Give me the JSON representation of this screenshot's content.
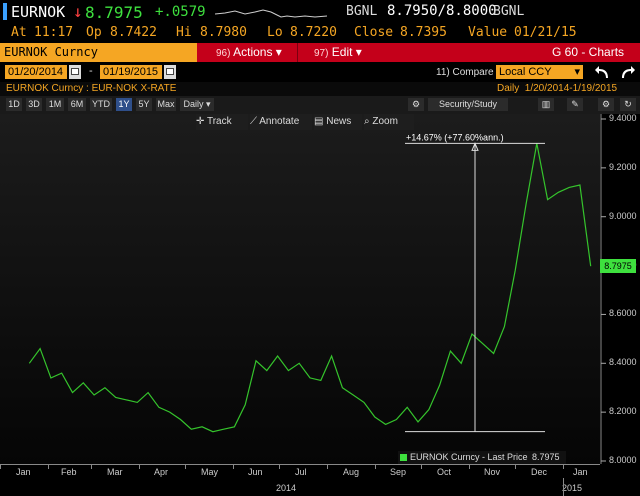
{
  "quote": {
    "ticker": "EURNOK",
    "arrow": "↓",
    "last": "8.7975",
    "change": "+.0579",
    "source": "BGNL",
    "bid_ask": "8.7950/8.8000",
    "source2": "BGNL",
    "at_label": "At",
    "time": "11:17",
    "op_label": "Op",
    "open": "8.7422",
    "hi_label": "Hi",
    "high": "8.7980",
    "lo_label": "Lo",
    "low": "8.7220",
    "close_label": "Close",
    "close": "8.7395",
    "value_label": "Value",
    "value_date": "01/21/15"
  },
  "menu": {
    "security": "EURNOK Curncy",
    "actions": {
      "num": "96)",
      "label": "Actions ▾"
    },
    "edit": {
      "num": "97)",
      "label": "Edit ▾"
    },
    "function": "G 60 - Charts"
  },
  "dates": {
    "start": "01/20/2014",
    "dash": "-",
    "end": "01/19/2015",
    "compare_label": "11) Compare",
    "compare_value": "Local CCY",
    "compare_arrow": "▾"
  },
  "info": {
    "description": "EURNOK Curncy : EUR-NOK X-RATE",
    "range": "Daily  1/20/2014-1/19/2015"
  },
  "periods": [
    "1D",
    "3D",
    "1M",
    "6M",
    "YTD",
    "1Y",
    "5Y",
    "Max"
  ],
  "active_period": "1Y",
  "frequency": "Daily ▾",
  "toolbar": {
    "security_study": "Security/Study",
    "track": "Track",
    "annotate": "Annotate",
    "news": "News",
    "zoom": "Zoom"
  },
  "chart_data": {
    "type": "line",
    "series": [
      {
        "name": "EURNOK Curncy - Last Price",
        "last_label": "8.7975",
        "x": [
          "2014-01-20",
          "2014-01-27",
          "2014-02-03",
          "2014-02-10",
          "2014-02-17",
          "2014-02-24",
          "2014-03-03",
          "2014-03-10",
          "2014-03-17",
          "2014-03-24",
          "2014-03-31",
          "2014-04-07",
          "2014-04-14",
          "2014-04-21",
          "2014-04-28",
          "2014-05-05",
          "2014-05-12",
          "2014-05-19",
          "2014-05-26",
          "2014-06-02",
          "2014-06-09",
          "2014-06-16",
          "2014-06-23",
          "2014-06-30",
          "2014-07-07",
          "2014-07-14",
          "2014-07-21",
          "2014-07-28",
          "2014-08-04",
          "2014-08-11",
          "2014-08-18",
          "2014-08-25",
          "2014-09-01",
          "2014-09-08",
          "2014-09-15",
          "2014-09-22",
          "2014-09-29",
          "2014-10-06",
          "2014-10-13",
          "2014-10-20",
          "2014-10-27",
          "2014-11-03",
          "2014-11-10",
          "2014-11-17",
          "2014-11-24",
          "2014-12-01",
          "2014-12-08",
          "2014-12-15",
          "2014-12-22",
          "2014-12-29",
          "2015-01-05",
          "2015-01-12",
          "2015-01-19"
        ],
        "values": [
          8.4,
          8.46,
          8.34,
          8.36,
          8.28,
          8.32,
          8.27,
          8.3,
          8.26,
          8.25,
          8.24,
          8.28,
          8.22,
          8.2,
          8.17,
          8.13,
          8.14,
          8.12,
          8.13,
          8.14,
          8.23,
          8.41,
          8.37,
          8.43,
          8.37,
          8.4,
          8.34,
          8.33,
          8.43,
          8.3,
          8.27,
          8.24,
          8.18,
          8.15,
          8.17,
          8.22,
          8.16,
          8.21,
          8.31,
          8.45,
          8.4,
          8.52,
          8.48,
          8.44,
          8.55,
          8.78,
          9.05,
          9.3,
          9.07,
          9.1,
          9.12,
          9.13,
          8.7975
        ]
      }
    ],
    "ylim": [
      8.0,
      9.4
    ],
    "y_ticks": [
      "9.4000",
      "9.2000",
      "9.0000",
      "8.8000",
      "8.6000",
      "8.4000",
      "8.2000",
      "8.0000"
    ],
    "x_ticks": [
      "Jan",
      "Feb",
      "Mar",
      "Apr",
      "May",
      "Jun",
      "Jul",
      "Aug",
      "Sep",
      "Oct",
      "Nov",
      "Dec",
      "Jan"
    ],
    "x_years": [
      "2014",
      "2015"
    ],
    "annotation": "+14.67% (+77.60%ann.)",
    "legend_position": "bottom-right",
    "grid": false,
    "line_color": "#35c42c"
  }
}
